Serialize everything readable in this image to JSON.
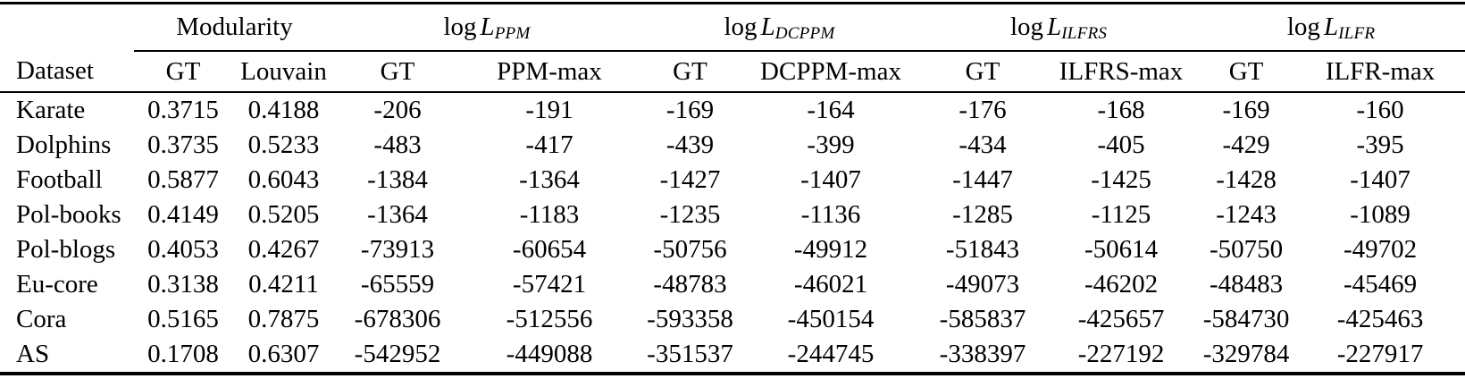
{
  "table": {
    "groups": [
      {
        "label": "Modularity"
      },
      {
        "prefix": "log",
        "var": "L",
        "sub": "PPM"
      },
      {
        "prefix": "log",
        "var": "L",
        "sub": "DCPPM"
      },
      {
        "prefix": "log",
        "var": "L",
        "sub": "ILFRS"
      },
      {
        "prefix": "log",
        "var": "L",
        "sub": "ILFR"
      }
    ],
    "columns": [
      "Dataset",
      "GT",
      "Louvain",
      "GT",
      "PPM-max",
      "GT",
      "DCPPM-max",
      "GT",
      "ILFRS-max",
      "GT",
      "ILFR-max"
    ],
    "rows": [
      {
        "dataset": "Karate",
        "values": [
          "0.3715",
          "0.4188",
          "-206",
          "-191",
          "-169",
          "-164",
          "-176",
          "-168",
          "-169",
          "-160"
        ]
      },
      {
        "dataset": "Dolphins",
        "values": [
          "0.3735",
          "0.5233",
          "-483",
          "-417",
          "-439",
          "-399",
          "-434",
          "-405",
          "-429",
          "-395"
        ]
      },
      {
        "dataset": "Football",
        "values": [
          "0.5877",
          "0.6043",
          "-1384",
          "-1364",
          "-1427",
          "-1407",
          "-1447",
          "-1425",
          "-1428",
          "-1407"
        ]
      },
      {
        "dataset": "Pol-books",
        "values": [
          "0.4149",
          "0.5205",
          "-1364",
          "-1183",
          "-1235",
          "-1136",
          "-1285",
          "-1125",
          "-1243",
          "-1089"
        ]
      },
      {
        "dataset": "Pol-blogs",
        "values": [
          "0.4053",
          "0.4267",
          "-73913",
          "-60654",
          "-50756",
          "-49912",
          "-51843",
          "-50614",
          "-50750",
          "-49702"
        ]
      },
      {
        "dataset": "Eu-core",
        "values": [
          "0.3138",
          "0.4211",
          "-65559",
          "-57421",
          "-48783",
          "-46021",
          "-49073",
          "-46202",
          "-48483",
          "-45469"
        ]
      },
      {
        "dataset": "Cora",
        "values": [
          "0.5165",
          "0.7875",
          "-678306",
          "-512556",
          "-593358",
          "-450154",
          "-585837",
          "-425657",
          "-584730",
          "-425463"
        ]
      },
      {
        "dataset": "AS",
        "values": [
          "0.1708",
          "0.6307",
          "-542952",
          "-449088",
          "-351537",
          "-244745",
          "-338397",
          "-227192",
          "-329784",
          "-227917"
        ]
      }
    ]
  },
  "colors": {
    "text": "#000000",
    "background": "#ffffff",
    "rule": "#000000"
  }
}
